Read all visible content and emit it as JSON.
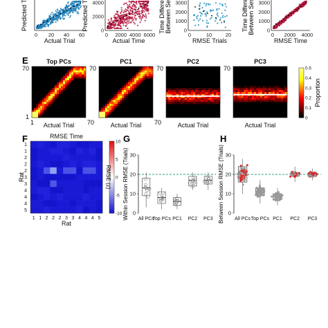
{
  "figure": {
    "panel_letters": [
      "E",
      "F",
      "G",
      "H"
    ]
  },
  "chart_data": [
    {
      "id": "top_row_a",
      "type": "scatter",
      "title": "",
      "xlabel": "Actual Trial",
      "ylabel": "Predicted T",
      "xticks": [
        "0",
        "20",
        "40",
        "60"
      ],
      "yticks": [],
      "marker_color": "#1f7fb8",
      "trend": "diagonal"
    },
    {
      "id": "top_row_b",
      "type": "scatter",
      "title": "",
      "xlabel": "Actual Time",
      "ylabel": "Predicted Ti",
      "xticks": [
        "0",
        "2000",
        "4000",
        "6000"
      ],
      "yticks": [
        "0",
        "2000",
        "4000"
      ],
      "marker_color": "#b3173f",
      "trend": "diagonal"
    },
    {
      "id": "top_row_c",
      "type": "scatter",
      "title": "",
      "xlabel": "RMSE Trials",
      "ylabel": "Time Differen Between Ses",
      "xticks": [
        "0",
        "10",
        "20"
      ],
      "yticks": [
        "0",
        "1000",
        "2000",
        "3000"
      ],
      "marker_color": "#1f8fbf",
      "trend": "scattered"
    },
    {
      "id": "top_row_d",
      "type": "scatter",
      "title": "",
      "xlabel": "RMSE Time",
      "ylabel": "Time Differe Between Sess",
      "xticks": [
        "0",
        "2000",
        "4000"
      ],
      "yticks": [
        "0",
        "1000",
        "2000",
        "3000"
      ],
      "marker_color": "#b3173f",
      "trend": "diagonal"
    },
    {
      "id": "panel_E",
      "type": "heatmap",
      "panel": "E",
      "subplots": [
        "Top PCs",
        "PC1",
        "PC2",
        "PC3"
      ],
      "xlabel": "Actual Trial",
      "ylabel": "",
      "axis_labels": [
        "1",
        "70"
      ],
      "colorbar": {
        "label": "Proportion",
        "ticks": [
          "0",
          "0.1",
          "0.2",
          "0.3",
          "0.4",
          "0.5"
        ],
        "range": [
          0,
          0.5
        ]
      }
    },
    {
      "id": "panel_F",
      "type": "heatmap",
      "panel": "F",
      "title": "RMSE Time",
      "xlabel": "Rat",
      "ylabel": "Rat",
      "row_labels": [
        "1",
        "1",
        "2",
        "2",
        "2",
        "3",
        "3",
        "4",
        "4",
        "4",
        "5"
      ],
      "col_labels": [
        "1",
        "1",
        "2",
        "2",
        "2",
        "3",
        "3",
        "4",
        "4",
        "4",
        "5"
      ],
      "colorbar": {
        "label": "RMSE (z)",
        "ticks": [
          "10",
          "5",
          "0",
          "-5",
          "-10"
        ],
        "range": [
          -10,
          10
        ]
      }
    },
    {
      "id": "panel_G",
      "type": "box",
      "panel": "G",
      "ylabel": "Within Session RMSE (Trials)",
      "categories": [
        "All PCs",
        "Top PCs",
        "PC1",
        "PC2",
        "PC3"
      ],
      "yticks": [
        "0",
        "10",
        "20",
        "30"
      ],
      "ylim": [
        0,
        30
      ],
      "reference_line": 20,
      "boxes": [
        {
          "name": "All PCs",
          "q1": 9,
          "median": 13,
          "q3": 18,
          "whisker_low": 3,
          "whisker_high": 21
        },
        {
          "name": "Top PCs",
          "q1": 5,
          "median": 8,
          "q3": 11,
          "whisker_low": 2,
          "whisker_high": 13
        },
        {
          "name": "PC1",
          "q1": 4,
          "median": 6,
          "q3": 8,
          "whisker_low": 2,
          "whisker_high": 10
        },
        {
          "name": "PC2",
          "q1": 14,
          "median": 17,
          "q3": 19,
          "whisker_low": 12,
          "whisker_high": 21
        },
        {
          "name": "PC3",
          "q1": 15,
          "median": 17,
          "q3": 19,
          "whisker_low": 12,
          "whisker_high": 21
        }
      ]
    },
    {
      "id": "panel_H",
      "type": "box",
      "panel": "H",
      "ylabel": "Between Session RMSE (Trials)",
      "categories": [
        "All PCs",
        "Top PCs",
        "PC1",
        "PC2",
        "PC3"
      ],
      "yticks": [
        "0",
        "10",
        "20",
        "30"
      ],
      "ylim": [
        0,
        30
      ],
      "reference_line": 20,
      "boxes": [
        {
          "name": "All PCs",
          "q1": 16,
          "median": 21,
          "q3": 24,
          "whisker_low": 10,
          "whisker_high": 28
        },
        {
          "name": "Top PCs",
          "q1": 9,
          "median": 11,
          "q3": 13,
          "whisker_low": 5,
          "whisker_high": 17
        },
        {
          "name": "PC1",
          "q1": 7,
          "median": 9,
          "q3": 10,
          "whisker_low": 4,
          "whisker_high": 13
        },
        {
          "name": "PC2",
          "q1": 19,
          "median": 20,
          "q3": 21,
          "whisker_low": 16,
          "whisker_high": 24
        },
        {
          "name": "PC3",
          "q1": 19,
          "median": 20,
          "q3": 21,
          "whisker_low": 17,
          "whisker_high": 23
        }
      ]
    }
  ]
}
